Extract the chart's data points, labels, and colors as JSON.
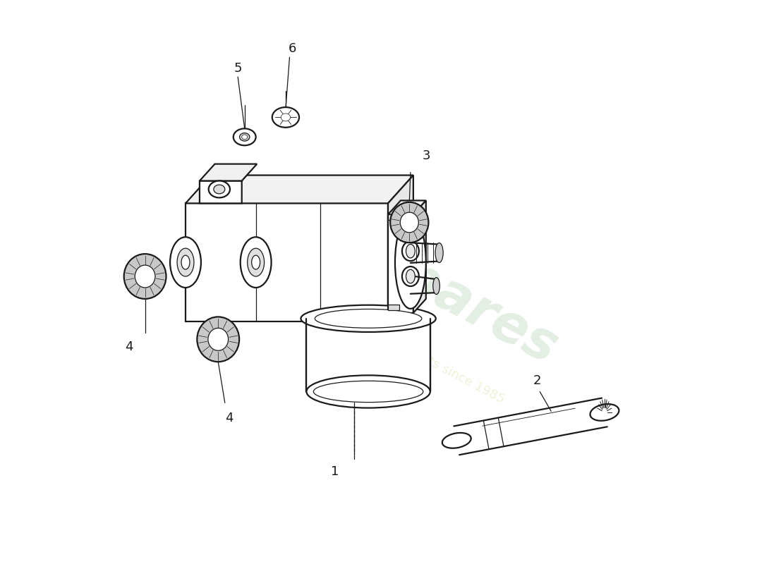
{
  "background_color": "#ffffff",
  "line_color": "#1a1a1a",
  "watermark_color1": "#c8dfc8",
  "watermark_color2": "#e8e8c0",
  "lw": 1.6,
  "lwt": 0.9,
  "lwk": 2.0,
  "label_fontsize": 13
}
